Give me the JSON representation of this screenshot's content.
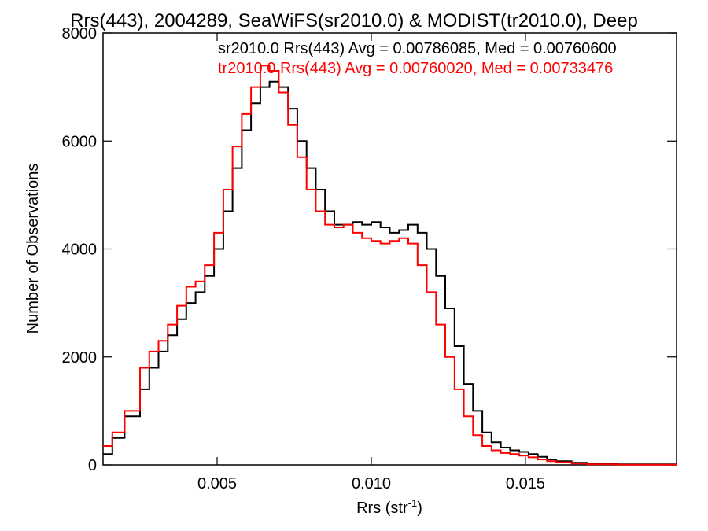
{
  "chart_data": {
    "type": "line",
    "title": "Rrs(443), 2004289, SeaWiFS(sr2010.0) & MODIST(tr2010.0), Deep",
    "xlabel": "Rrs (str",
    "xlabel_sup": "-1",
    "xlabel_end": ")",
    "ylabel": "Number of Observations",
    "xlim": [
      0.0013,
      0.0199
    ],
    "ylim": [
      0,
      8000
    ],
    "x_ticks": [
      0.005,
      0.01,
      0.015
    ],
    "x_tick_labels": [
      "0.005",
      "0.010",
      "0.015"
    ],
    "y_ticks": [
      0,
      2000,
      4000,
      6000,
      8000
    ],
    "y_tick_labels": [
      "0",
      "2000",
      "4000",
      "6000",
      "8000"
    ],
    "grid": false,
    "legend_position": "top-right",
    "series": [
      {
        "name": "sr2010.0 Rrs(443) Avg = 0.00786085, Med = 0.00760600",
        "color": "#000000",
        "points": [
          [
            0.0013,
            200
          ],
          [
            0.0016,
            500
          ],
          [
            0.002,
            900
          ],
          [
            0.0025,
            1400
          ],
          [
            0.0028,
            1800
          ],
          [
            0.0031,
            2100
          ],
          [
            0.0034,
            2400
          ],
          [
            0.0037,
            2700
          ],
          [
            0.004,
            3000
          ],
          [
            0.0043,
            3200
          ],
          [
            0.0046,
            3500
          ],
          [
            0.0049,
            4000
          ],
          [
            0.0052,
            4700
          ],
          [
            0.0055,
            5500
          ],
          [
            0.0058,
            6200
          ],
          [
            0.0061,
            6700
          ],
          [
            0.0064,
            7000
          ],
          [
            0.0067,
            7100
          ],
          [
            0.007,
            7000
          ],
          [
            0.0073,
            6600
          ],
          [
            0.0076,
            6000
          ],
          [
            0.0079,
            5500
          ],
          [
            0.0082,
            5100
          ],
          [
            0.0085,
            4700
          ],
          [
            0.0088,
            4450
          ],
          [
            0.0091,
            4450
          ],
          [
            0.0094,
            4500
          ],
          [
            0.0097,
            4450
          ],
          [
            0.01,
            4500
          ],
          [
            0.0103,
            4400
          ],
          [
            0.0106,
            4300
          ],
          [
            0.0109,
            4350
          ],
          [
            0.0112,
            4450
          ],
          [
            0.0115,
            4300
          ],
          [
            0.0118,
            4000
          ],
          [
            0.0121,
            3500
          ],
          [
            0.0124,
            2900
          ],
          [
            0.0127,
            2200
          ],
          [
            0.013,
            1500
          ],
          [
            0.0133,
            1000
          ],
          [
            0.0136,
            600
          ],
          [
            0.0139,
            420
          ],
          [
            0.0142,
            320
          ],
          [
            0.0145,
            270
          ],
          [
            0.0148,
            240
          ],
          [
            0.0151,
            200
          ],
          [
            0.0154,
            150
          ],
          [
            0.0157,
            100
          ],
          [
            0.016,
            70
          ],
          [
            0.0165,
            40
          ],
          [
            0.017,
            20
          ],
          [
            0.018,
            10
          ],
          [
            0.0199,
            5
          ]
        ]
      },
      {
        "name": "tr2010.0 Rrs(443) Avg = 0.00760020, Med = 0.00733476",
        "color": "#ff0000",
        "points": [
          [
            0.0013,
            350
          ],
          [
            0.0016,
            600
          ],
          [
            0.002,
            1000
          ],
          [
            0.0025,
            1800
          ],
          [
            0.0028,
            2100
          ],
          [
            0.0031,
            2300
          ],
          [
            0.0034,
            2600
          ],
          [
            0.0037,
            2950
          ],
          [
            0.004,
            3300
          ],
          [
            0.0043,
            3400
          ],
          [
            0.0046,
            3700
          ],
          [
            0.0049,
            4300
          ],
          [
            0.0052,
            5100
          ],
          [
            0.0055,
            5900
          ],
          [
            0.0058,
            6500
          ],
          [
            0.0061,
            7000
          ],
          [
            0.0064,
            7400
          ],
          [
            0.0067,
            7300
          ],
          [
            0.007,
            6900
          ],
          [
            0.0073,
            6300
          ],
          [
            0.0076,
            5700
          ],
          [
            0.0079,
            5100
          ],
          [
            0.0082,
            4700
          ],
          [
            0.0085,
            4450
          ],
          [
            0.0088,
            4400
          ],
          [
            0.0091,
            4450
          ],
          [
            0.0094,
            4300
          ],
          [
            0.0097,
            4200
          ],
          [
            0.01,
            4150
          ],
          [
            0.0103,
            4100
          ],
          [
            0.0106,
            4150
          ],
          [
            0.0109,
            4200
          ],
          [
            0.0112,
            4100
          ],
          [
            0.0115,
            3700
          ],
          [
            0.0118,
            3200
          ],
          [
            0.0121,
            2600
          ],
          [
            0.0124,
            2000
          ],
          [
            0.0127,
            1400
          ],
          [
            0.013,
            900
          ],
          [
            0.0133,
            550
          ],
          [
            0.0136,
            350
          ],
          [
            0.0139,
            270
          ],
          [
            0.0142,
            220
          ],
          [
            0.0145,
            200
          ],
          [
            0.0148,
            170
          ],
          [
            0.0151,
            140
          ],
          [
            0.0154,
            100
          ],
          [
            0.0157,
            70
          ],
          [
            0.016,
            50
          ],
          [
            0.0165,
            25
          ],
          [
            0.017,
            12
          ],
          [
            0.018,
            5
          ],
          [
            0.0199,
            2
          ]
        ]
      }
    ]
  }
}
